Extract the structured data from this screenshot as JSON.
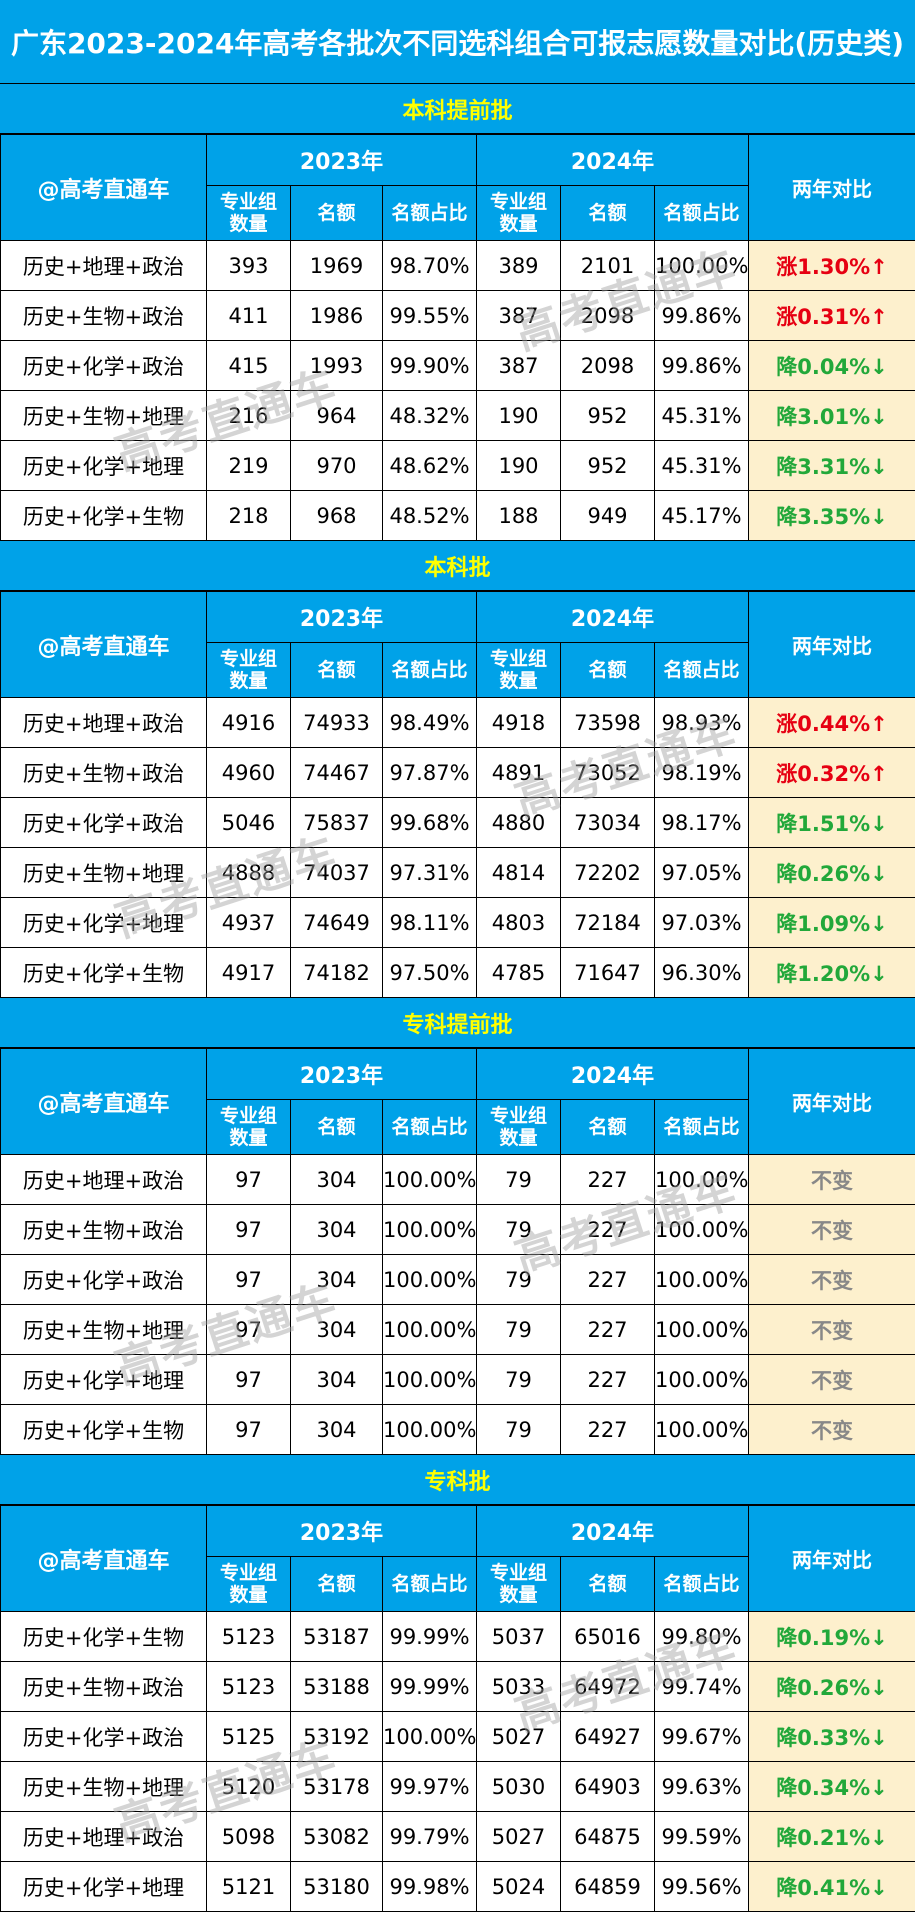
{
  "title": "广东2023-2024年高考各批次不同选科组合可报志愿数量对比(历史类)",
  "header": {
    "brand": "@高考直通车",
    "year_a": "2023年",
    "year_b": "2024年",
    "col_groups": "专业组数量",
    "col_quota": "名额",
    "col_ratio": "名额占比",
    "col_compare": "两年对比"
  },
  "watermark": "高考直通车",
  "colors": {
    "header_bg": "#00a2e8",
    "section_title": "#ffff00",
    "compare_bg": "#fdf0cd",
    "up": "#e60012",
    "down": "#22a83a",
    "same": "#888888"
  },
  "sections": [
    {
      "name": "本科提前批",
      "rows": [
        {
          "combo": "历史+地理+政治",
          "g23": "393",
          "q23": "1969",
          "r23": "98.70%",
          "g24": "389",
          "q24": "2101",
          "r24": "100.00%",
          "cmp": "涨1.30%↑",
          "trend": "up"
        },
        {
          "combo": "历史+生物+政治",
          "g23": "411",
          "q23": "1986",
          "r23": "99.55%",
          "g24": "387",
          "q24": "2098",
          "r24": "99.86%",
          "cmp": "涨0.31%↑",
          "trend": "up"
        },
        {
          "combo": "历史+化学+政治",
          "g23": "415",
          "q23": "1993",
          "r23": "99.90%",
          "g24": "387",
          "q24": "2098",
          "r24": "99.86%",
          "cmp": "降0.04%↓",
          "trend": "down"
        },
        {
          "combo": "历史+生物+地理",
          "g23": "216",
          "q23": "964",
          "r23": "48.32%",
          "g24": "190",
          "q24": "952",
          "r24": "45.31%",
          "cmp": "降3.01%↓",
          "trend": "down"
        },
        {
          "combo": "历史+化学+地理",
          "g23": "219",
          "q23": "970",
          "r23": "48.62%",
          "g24": "190",
          "q24": "952",
          "r24": "45.31%",
          "cmp": "降3.31%↓",
          "trend": "down"
        },
        {
          "combo": "历史+化学+生物",
          "g23": "218",
          "q23": "968",
          "r23": "48.52%",
          "g24": "188",
          "q24": "949",
          "r24": "45.17%",
          "cmp": "降3.35%↓",
          "trend": "down"
        }
      ]
    },
    {
      "name": "本科批",
      "rows": [
        {
          "combo": "历史+地理+政治",
          "g23": "4916",
          "q23": "74933",
          "r23": "98.49%",
          "g24": "4918",
          "q24": "73598",
          "r24": "98.93%",
          "cmp": "涨0.44%↑",
          "trend": "up"
        },
        {
          "combo": "历史+生物+政治",
          "g23": "4960",
          "q23": "74467",
          "r23": "97.87%",
          "g24": "4891",
          "q24": "73052",
          "r24": "98.19%",
          "cmp": "涨0.32%↑",
          "trend": "up"
        },
        {
          "combo": "历史+化学+政治",
          "g23": "5046",
          "q23": "75837",
          "r23": "99.68%",
          "g24": "4880",
          "q24": "73034",
          "r24": "98.17%",
          "cmp": "降1.51%↓",
          "trend": "down"
        },
        {
          "combo": "历史+生物+地理",
          "g23": "4888",
          "q23": "74037",
          "r23": "97.31%",
          "g24": "4814",
          "q24": "72202",
          "r24": "97.05%",
          "cmp": "降0.26%↓",
          "trend": "down"
        },
        {
          "combo": "历史+化学+地理",
          "g23": "4937",
          "q23": "74649",
          "r23": "98.11%",
          "g24": "4803",
          "q24": "72184",
          "r24": "97.03%",
          "cmp": "降1.09%↓",
          "trend": "down"
        },
        {
          "combo": "历史+化学+生物",
          "g23": "4917",
          "q23": "74182",
          "r23": "97.50%",
          "g24": "4785",
          "q24": "71647",
          "r24": "96.30%",
          "cmp": "降1.20%↓",
          "trend": "down"
        }
      ]
    },
    {
      "name": "专科提前批",
      "rows": [
        {
          "combo": "历史+地理+政治",
          "g23": "97",
          "q23": "304",
          "r23": "100.00%",
          "g24": "79",
          "q24": "227",
          "r24": "100.00%",
          "cmp": "不变",
          "trend": "same"
        },
        {
          "combo": "历史+生物+政治",
          "g23": "97",
          "q23": "304",
          "r23": "100.00%",
          "g24": "79",
          "q24": "227",
          "r24": "100.00%",
          "cmp": "不变",
          "trend": "same"
        },
        {
          "combo": "历史+化学+政治",
          "g23": "97",
          "q23": "304",
          "r23": "100.00%",
          "g24": "79",
          "q24": "227",
          "r24": "100.00%",
          "cmp": "不变",
          "trend": "same"
        },
        {
          "combo": "历史+生物+地理",
          "g23": "97",
          "q23": "304",
          "r23": "100.00%",
          "g24": "79",
          "q24": "227",
          "r24": "100.00%",
          "cmp": "不变",
          "trend": "same"
        },
        {
          "combo": "历史+化学+地理",
          "g23": "97",
          "q23": "304",
          "r23": "100.00%",
          "g24": "79",
          "q24": "227",
          "r24": "100.00%",
          "cmp": "不变",
          "trend": "same"
        },
        {
          "combo": "历史+化学+生物",
          "g23": "97",
          "q23": "304",
          "r23": "100.00%",
          "g24": "79",
          "q24": "227",
          "r24": "100.00%",
          "cmp": "不变",
          "trend": "same"
        }
      ]
    },
    {
      "name": "专科批",
      "rows": [
        {
          "combo": "历史+化学+生物",
          "g23": "5123",
          "q23": "53187",
          "r23": "99.99%",
          "g24": "5037",
          "q24": "65016",
          "r24": "99.80%",
          "cmp": "降0.19%↓",
          "trend": "down"
        },
        {
          "combo": "历史+生物+政治",
          "g23": "5123",
          "q23": "53188",
          "r23": "99.99%",
          "g24": "5033",
          "q24": "64972",
          "r24": "99.74%",
          "cmp": "降0.26%↓",
          "trend": "down"
        },
        {
          "combo": "历史+化学+政治",
          "g23": "5125",
          "q23": "53192",
          "r23": "100.00%",
          "g24": "5027",
          "q24": "64927",
          "r24": "99.67%",
          "cmp": "降0.33%↓",
          "trend": "down"
        },
        {
          "combo": "历史+生物+地理",
          "g23": "5120",
          "q23": "53178",
          "r23": "99.97%",
          "g24": "5030",
          "q24": "64903",
          "r24": "99.63%",
          "cmp": "降0.34%↓",
          "trend": "down"
        },
        {
          "combo": "历史+地理+政治",
          "g23": "5098",
          "q23": "53082",
          "r23": "99.79%",
          "g24": "5027",
          "q24": "64875",
          "r24": "99.59%",
          "cmp": "降0.21%↓",
          "trend": "down"
        },
        {
          "combo": "历史+化学+地理",
          "g23": "5121",
          "q23": "53180",
          "r23": "99.98%",
          "g24": "5024",
          "q24": "64859",
          "r24": "99.56%",
          "cmp": "降0.41%↓",
          "trend": "down"
        }
      ]
    }
  ]
}
